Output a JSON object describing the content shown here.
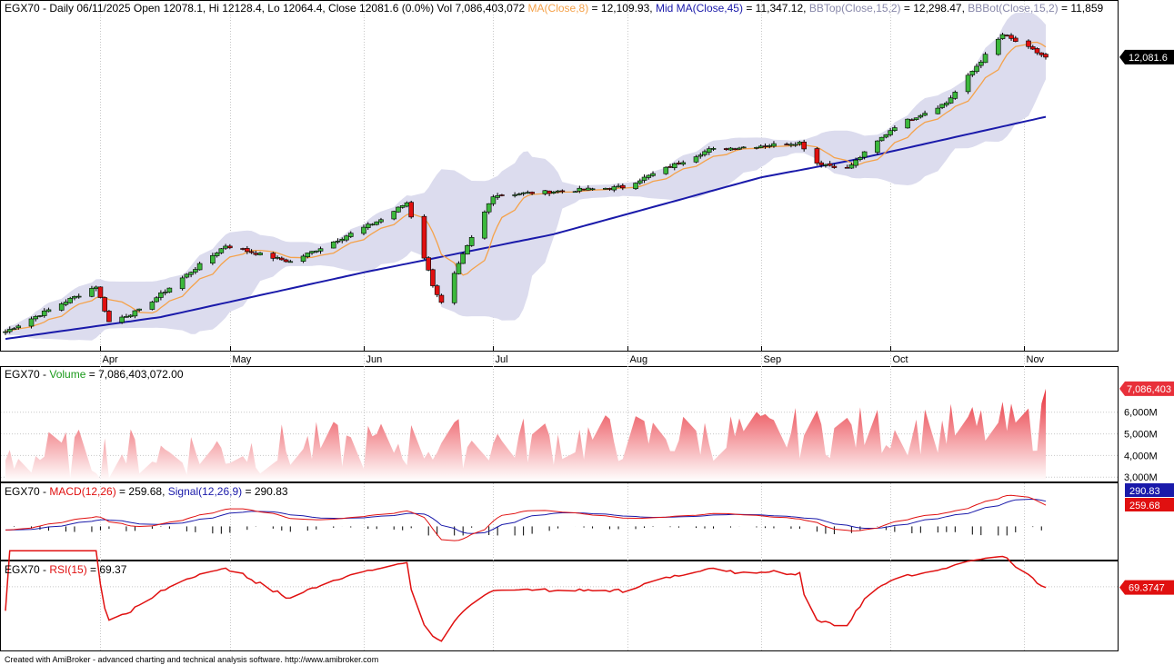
{
  "colors": {
    "up": "#3cb83c",
    "down": "#e01010",
    "ma8": "#f5a24a",
    "mid_ma": "#1a1aaa",
    "bb_band": "#dcdcee",
    "volume": "#e8303a",
    "macd": "#e01010",
    "signal": "#1a1aaa",
    "rsi": "#e01010",
    "label_green": "#1a9a1a",
    "label_blue": "#1a1aaa",
    "label_red": "#e01010",
    "label_orange": "#f5a24a",
    "label_grey": "#8888aa"
  },
  "price_pane": {
    "title_parts": [
      {
        "text": "EGX70 - Daily 06/11/2025 Open 12078.1, Hi 12128.4, Lo 12064.4, Close 12081.6 (0.0%) Vol 7,086,403,072 ",
        "color": "#000000"
      },
      {
        "text": "MA(Close,8)",
        "color": "#f5a24a"
      },
      {
        "text": " = 12,109.93, ",
        "color": "#000000"
      },
      {
        "text": "Mid MA(Close,45)",
        "color": "#1a1aaa"
      },
      {
        "text": " = 11,347.12, ",
        "color": "#000000"
      },
      {
        "text": "BBTop(Close,15,2)",
        "color": "#8888aa"
      },
      {
        "text": " = 12,298.47, ",
        "color": "#000000"
      },
      {
        "text": "BBBot(Close,15,2)",
        "color": "#8888aa"
      },
      {
        "text": " = 11,859",
        "color": "#000000"
      }
    ],
    "last_price_label": "12,081.6",
    "month_labels": [
      "Apr",
      "May",
      "Jun",
      "Jul",
      "Aug",
      "Sep",
      "Oct",
      "Nov"
    ]
  },
  "volume_pane": {
    "title_parts": [
      {
        "text": "EGX70 - ",
        "color": "#000000"
      },
      {
        "text": "Volume",
        "color": "#1a9a1a"
      },
      {
        "text": " = 7,086,403,072.00",
        "color": "#000000"
      }
    ],
    "tick_labels": [
      "6,000M",
      "5,000M",
      "4,000M",
      "3,000M"
    ],
    "last_label": "7,086,403"
  },
  "macd_pane": {
    "title_parts": [
      {
        "text": "EGX70 - ",
        "color": "#000000"
      },
      {
        "text": "MACD(12,26)",
        "color": "#e01010"
      },
      {
        "text": " = 259.68, ",
        "color": "#000000"
      },
      {
        "text": "Signal(12,26,9)",
        "color": "#1a1aaa"
      },
      {
        "text": " = 290.83",
        "color": "#000000"
      }
    ],
    "signal_label": "290.83",
    "macd_label": "259.68"
  },
  "rsi_pane": {
    "title_parts": [
      {
        "text": "EGX70 - ",
        "color": "#000000"
      },
      {
        "text": "RSI(15)",
        "color": "#e01010"
      },
      {
        "text": " = 69.37",
        "color": "#000000"
      }
    ],
    "last_label": "69.3747"
  },
  "footer": "Created with AmiBroker - advanced charting and technical analysis software. http://www.amibroker.com",
  "chart_data": {
    "type": "line",
    "symbol": "EGX70",
    "period": "Daily",
    "price_range": [
      8600,
      12450
    ],
    "x_range": [
      "2025-03-10",
      "2025-11-06"
    ],
    "close_anchors": [
      {
        "x": "2025-03-10",
        "y": 8700
      },
      {
        "x": "2025-03-31",
        "y": 9260
      },
      {
        "x": "2025-04-03",
        "y": 8820
      },
      {
        "x": "2025-04-10",
        "y": 8960
      },
      {
        "x": "2025-04-30",
        "y": 9760
      },
      {
        "x": "2025-05-15",
        "y": 9560
      },
      {
        "x": "2025-06-05",
        "y": 10080
      },
      {
        "x": "2025-06-11",
        "y": 10290
      },
      {
        "x": "2025-06-17",
        "y": 9280
      },
      {
        "x": "2025-06-19",
        "y": 9050
      },
      {
        "x": "2025-06-24",
        "y": 9640
      },
      {
        "x": "2025-07-01",
        "y": 10380
      },
      {
        "x": "2025-07-31",
        "y": 10480
      },
      {
        "x": "2025-08-20",
        "y": 10940
      },
      {
        "x": "2025-09-10",
        "y": 11030
      },
      {
        "x": "2025-09-14",
        "y": 10780
      },
      {
        "x": "2025-09-21",
        "y": 10710
      },
      {
        "x": "2025-10-02",
        "y": 11230
      },
      {
        "x": "2025-10-14",
        "y": 11520
      },
      {
        "x": "2025-10-27",
        "y": 12360
      },
      {
        "x": "2025-11-06",
        "y": 12082
      }
    ],
    "mid_ma45_anchors": [
      {
        "x": "2025-03-10",
        "y": 8610
      },
      {
        "x": "2025-04-15",
        "y": 8880
      },
      {
        "x": "2025-06-01",
        "y": 9430
      },
      {
        "x": "2025-07-15",
        "y": 9900
      },
      {
        "x": "2025-09-01",
        "y": 10600
      },
      {
        "x": "2025-09-22",
        "y": 10810
      },
      {
        "x": "2025-11-06",
        "y": 11347
      }
    ],
    "last_bar": {
      "date": "2025-11-06",
      "open": 12078.1,
      "high": 12128.4,
      "low": 12064.4,
      "close": 12081.6,
      "volume": 7086403072
    },
    "ma8_last": 12109.93,
    "mid_ma45_last": 11347.12,
    "bb_top_last": 12298.47,
    "bb_bot_last": 11859,
    "volume_axis_ticks": [
      6000,
      5000,
      4000,
      3000
    ],
    "volume_unit": "M",
    "macd_last": 259.68,
    "signal_last": 290.83,
    "rsi_last": 69.37
  }
}
